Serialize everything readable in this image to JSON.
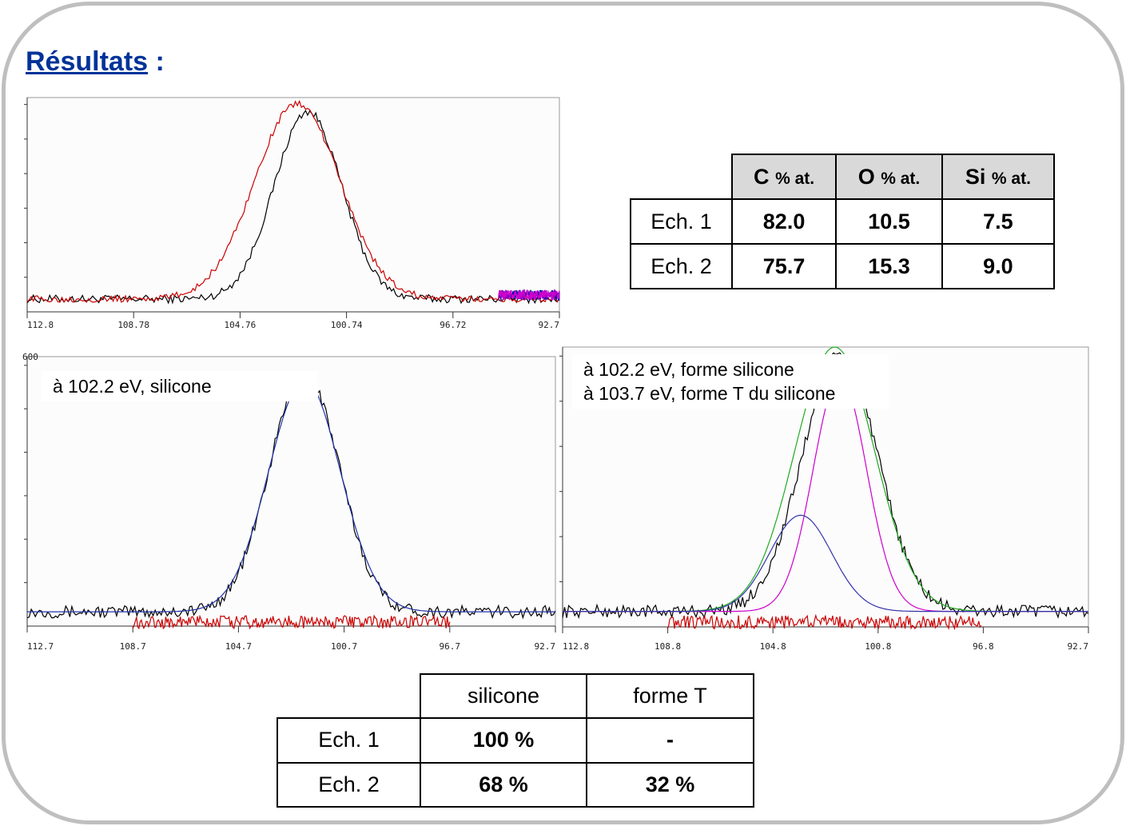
{
  "title": {
    "main": "Résultats",
    "colon": " :"
  },
  "chart_data": [
    {
      "type": "line",
      "xlim": [
        112.8,
        92.7
      ],
      "x_ticks": [
        "112.8",
        "108.78",
        "104.76",
        "100.74",
        "96.72",
        "92.7"
      ],
      "series": [
        {
          "color": "#000000",
          "peak_x": 102.2,
          "peak_y": 0.93,
          "fwhm": 3.0,
          "noise": 0.01
        },
        {
          "color": "#cc0000",
          "peak_x": 102.6,
          "peak_y": 0.97,
          "fwhm": 3.8,
          "noise": 0.008
        },
        {
          "color": "#0000aa",
          "x_range": [
            95.0,
            92.7
          ],
          "level": 0.06
        },
        {
          "color": "#cc00cc",
          "x_range": [
            95.0,
            92.7
          ],
          "level": 0.06
        }
      ]
    },
    {
      "type": "line",
      "xlim": [
        112.7,
        92.7
      ],
      "x_ticks": [
        "112.7",
        "108.7",
        "104.7",
        "100.7",
        "96.7",
        "92.7"
      ],
      "y_top_label": "600",
      "annotation": "à 102.2 eV, silicone",
      "series": [
        {
          "color": "#000000",
          "peak_x": 102.2,
          "peak_y": 0.93,
          "fwhm": 3.1,
          "noise": 0.012
        },
        {
          "color": "#2233aa",
          "peak_x": 102.2,
          "peak_y": 0.9,
          "fwhm": 3.2,
          "noise": 0.0
        },
        {
          "color": "#cc0000",
          "x_range": [
            108.7,
            96.7
          ],
          "level": 0.0
        }
      ]
    },
    {
      "type": "line",
      "xlim": [
        112.8,
        92.7
      ],
      "x_ticks": [
        "112.8",
        "108.8",
        "104.8",
        "100.8",
        "96.8",
        "92.7"
      ],
      "annotation": [
        "à 102.2 eV, forme silicone",
        "à 103.7 eV, forme T du silicone"
      ],
      "series": [
        {
          "color": "#000000",
          "peak_x": 102.2,
          "peak_y": 0.96,
          "fwhm": 3.4,
          "noise": 0.012
        },
        {
          "color": "#22aa22",
          "peak_x": 102.4,
          "peak_y": 0.99,
          "fwhm": 3.6,
          "noise": 0.0
        },
        {
          "color": "#cc00cc",
          "peak_x": 102.2,
          "peak_y": 0.88,
          "fwhm": 2.4,
          "noise": 0.0
        },
        {
          "color": "#3333aa",
          "peak_x": 103.7,
          "peak_y": 0.36,
          "fwhm": 2.8,
          "noise": 0.0
        },
        {
          "color": "#cc0000",
          "x_range": [
            108.8,
            96.8
          ],
          "level": 0.0
        }
      ]
    }
  ],
  "composition_table": {
    "headers": [
      {
        "el": "C",
        "unit": "% at."
      },
      {
        "el": "O",
        "unit": "% at."
      },
      {
        "el": "Si",
        "unit": "% at."
      }
    ],
    "rows": [
      {
        "label": "Ech. 1",
        "values": [
          "82.0",
          "10.5",
          "7.5"
        ]
      },
      {
        "label": "Ech. 2",
        "values": [
          "75.7",
          "15.3",
          "9.0"
        ]
      }
    ]
  },
  "forms_table": {
    "headers": [
      "silicone",
      "forme T"
    ],
    "rows": [
      {
        "label": "Ech. 1",
        "values": [
          "100 %",
          "-"
        ]
      },
      {
        "label": "Ech. 2",
        "values": [
          "68 %",
          "32 %"
        ]
      }
    ]
  }
}
